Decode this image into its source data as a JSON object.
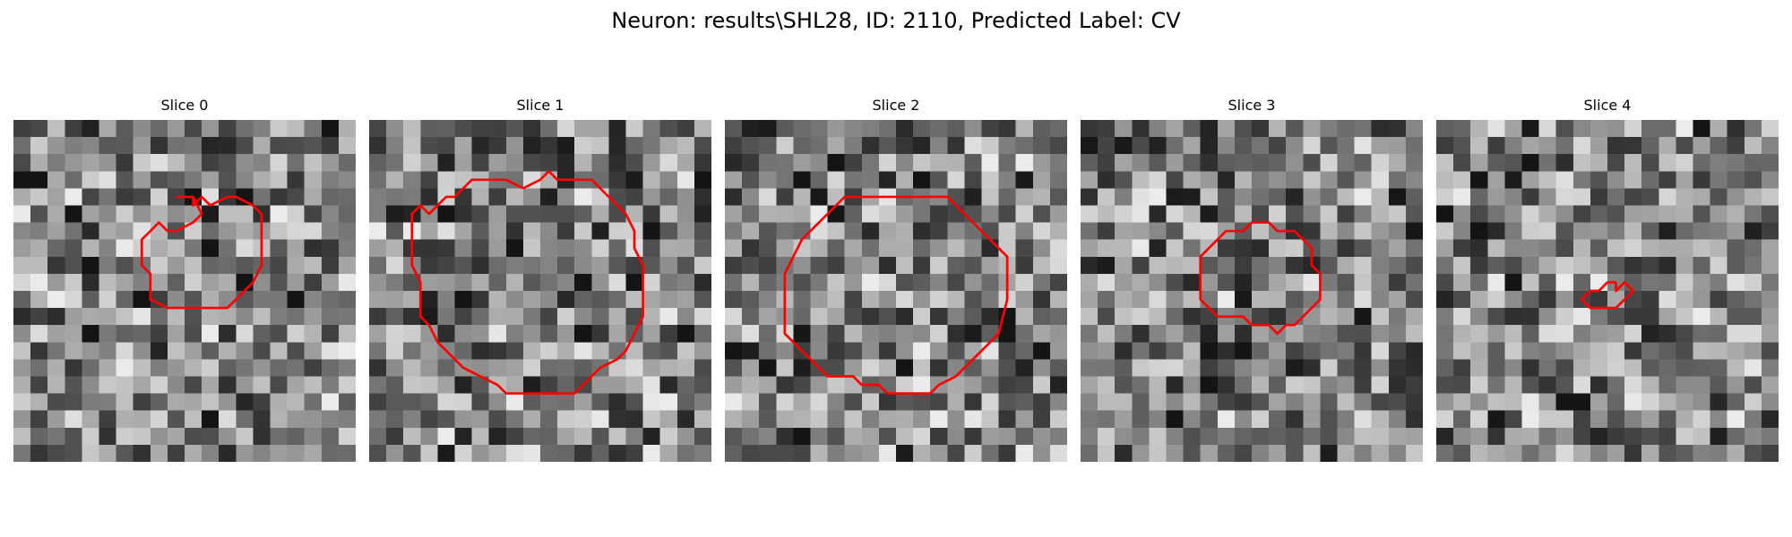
{
  "figure": {
    "title": "Neuron: results\\SHL28, ID: 2110, Predicted Label: CV",
    "contour_color": "#ff0000",
    "colormap": "gray"
  },
  "slices": [
    {
      "title": "Slice 0",
      "seed": 11,
      "contour": [
        [
          9.5,
          4.5
        ],
        [
          10.5,
          4.5
        ],
        [
          10.5,
          5
        ],
        [
          11,
          4.5
        ],
        [
          11.5,
          5
        ],
        [
          12.5,
          4.5
        ],
        [
          13,
          4.5
        ],
        [
          14,
          5
        ],
        [
          14.5,
          5.5
        ],
        [
          14.5,
          8.5
        ],
        [
          14,
          9.5
        ],
        [
          13,
          10.5
        ],
        [
          12.5,
          11
        ],
        [
          9,
          11
        ],
        [
          8,
          10.5
        ],
        [
          8,
          9
        ],
        [
          7.5,
          8.5
        ],
        [
          7.5,
          7
        ],
        [
          8,
          6.5
        ],
        [
          8.5,
          6
        ],
        [
          9,
          6.5
        ],
        [
          9.5,
          6.5
        ],
        [
          10.5,
          6
        ],
        [
          11,
          5.5
        ],
        [
          10.5,
          4.5
        ]
      ]
    },
    {
      "title": "Slice 1",
      "seed": 23,
      "contour": [
        [
          9,
          4
        ],
        [
          10,
          3.5
        ],
        [
          10.5,
          3
        ],
        [
          11,
          3.5
        ],
        [
          13,
          3.5
        ],
        [
          14,
          4.5
        ],
        [
          15,
          5.5
        ],
        [
          15.5,
          6.5
        ],
        [
          15.5,
          7.5
        ],
        [
          16,
          8.5
        ],
        [
          16,
          11.5
        ],
        [
          15.5,
          12.5
        ],
        [
          15,
          13.5
        ],
        [
          14.5,
          14
        ],
        [
          13.5,
          14.5
        ],
        [
          12.5,
          15.5
        ],
        [
          12,
          16
        ],
        [
          8,
          16
        ],
        [
          7.5,
          15.5
        ],
        [
          6.5,
          15
        ],
        [
          5.5,
          14.5
        ],
        [
          4.5,
          13.5
        ],
        [
          4,
          13
        ],
        [
          3.5,
          12
        ],
        [
          3,
          11.5
        ],
        [
          3,
          9.5
        ],
        [
          2.5,
          8.5
        ],
        [
          2.5,
          5.5
        ],
        [
          3,
          5
        ],
        [
          3.5,
          5.5
        ],
        [
          4,
          5
        ],
        [
          4.5,
          4.5
        ],
        [
          5,
          4.5
        ],
        [
          5.5,
          4
        ],
        [
          6,
          3.5
        ],
        [
          8,
          3.5
        ],
        [
          9,
          4
        ]
      ]
    },
    {
      "title": "Slice 2",
      "seed": 37,
      "contour": [
        [
          8,
          4.5
        ],
        [
          13,
          4.5
        ],
        [
          14,
          5.5
        ],
        [
          15,
          6.5
        ],
        [
          16,
          7.5
        ],
        [
          16.5,
          8
        ],
        [
          16.5,
          10.5
        ],
        [
          16,
          12.5
        ],
        [
          15.5,
          13
        ],
        [
          14.5,
          14
        ],
        [
          13.5,
          15
        ],
        [
          12.5,
          15.5
        ],
        [
          12,
          16
        ],
        [
          9.5,
          16
        ],
        [
          9,
          15.5
        ],
        [
          8,
          15.5
        ],
        [
          7.5,
          15
        ],
        [
          6,
          15
        ],
        [
          5.5,
          14.5
        ],
        [
          4.5,
          13.5
        ],
        [
          4,
          13
        ],
        [
          3.5,
          12.5
        ],
        [
          3.5,
          9
        ],
        [
          4,
          8
        ],
        [
          4.5,
          7
        ],
        [
          5,
          6.5
        ],
        [
          6,
          5.5
        ],
        [
          7,
          4.5
        ],
        [
          8,
          4.5
        ]
      ]
    },
    {
      "title": "Slice 3",
      "seed": 53,
      "contour": [
        [
          8,
          7
        ],
        [
          8.5,
          6.5
        ],
        [
          9.5,
          6.5
        ],
        [
          10,
          6
        ],
        [
          11,
          6
        ],
        [
          11.5,
          6.5
        ],
        [
          12.5,
          6.5
        ],
        [
          13,
          7
        ],
        [
          13.5,
          7.5
        ],
        [
          13.5,
          8.5
        ],
        [
          14,
          9
        ],
        [
          14,
          10.5
        ],
        [
          13.5,
          11
        ],
        [
          13,
          11.5
        ],
        [
          12.5,
          12
        ],
        [
          12,
          12
        ],
        [
          11.5,
          12.5
        ],
        [
          11,
          12
        ],
        [
          10,
          12
        ],
        [
          9.5,
          11.5
        ],
        [
          8,
          11.5
        ],
        [
          7.5,
          11
        ],
        [
          7,
          10.5
        ],
        [
          7,
          8
        ],
        [
          7.5,
          7.5
        ],
        [
          8,
          7
        ]
      ]
    },
    {
      "title": "Slice 4",
      "seed": 71,
      "contour": [
        [
          10.5,
          9.5
        ],
        [
          10.5,
          10
        ],
        [
          11,
          9.5
        ],
        [
          11.5,
          10
        ],
        [
          11,
          10.5
        ],
        [
          10.5,
          11
        ],
        [
          9,
          11
        ],
        [
          8.5,
          10.5
        ],
        [
          9,
          10
        ],
        [
          9.5,
          10
        ],
        [
          10,
          9.5
        ],
        [
          10.5,
          9.5
        ]
      ]
    }
  ]
}
